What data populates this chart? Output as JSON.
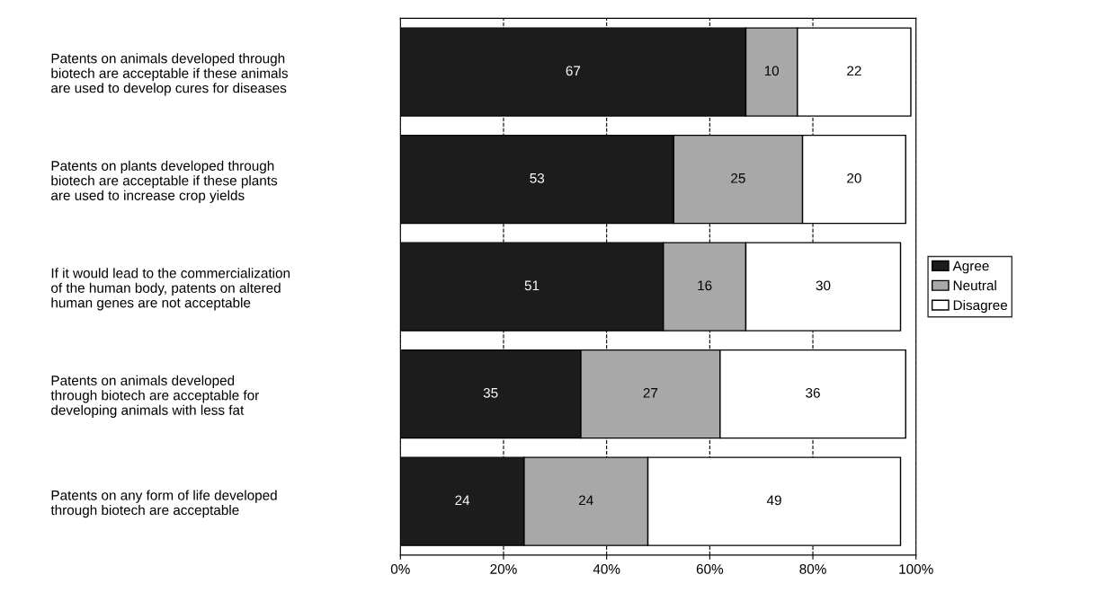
{
  "chart_data": {
    "type": "bar",
    "orientation": "horizontal",
    "stacked": true,
    "categories": [
      "Patents on animals developed through\nbiotech are acceptable if these animals\nare used to develop cures for diseases",
      "Patents on plants developed through\nbiotech are acceptable if these plants\nare used to increase crop yields",
      "If it would lead to the commercialization\nof the human body, patents on altered\nhuman genes are not acceptable",
      "Patents on animals developed\nthrough biotech are acceptable for\ndeveloping animals with less fat",
      "Patents on any form of life developed\nthrough biotech are acceptable"
    ],
    "series": [
      {
        "name": "Agree",
        "color": "#1c1c1c",
        "values": [
          67,
          53,
          51,
          35,
          24
        ]
      },
      {
        "name": "Neutral",
        "color": "#a8a8a8",
        "values": [
          10,
          25,
          16,
          27,
          24
        ]
      },
      {
        "name": "Disagree",
        "color": "#ffffff",
        "values": [
          22,
          20,
          30,
          36,
          49
        ]
      }
    ],
    "xlim": [
      0,
      100
    ],
    "xticks": [
      {
        "value": 0,
        "label": "0%"
      },
      {
        "value": 20,
        "label": "20%"
      },
      {
        "value": 40,
        "label": "40%"
      },
      {
        "value": 60,
        "label": "60%"
      },
      {
        "value": 80,
        "label": "80%"
      },
      {
        "value": 100,
        "label": "100%"
      }
    ],
    "data_labels": true,
    "grid": "x",
    "legend": "right"
  }
}
